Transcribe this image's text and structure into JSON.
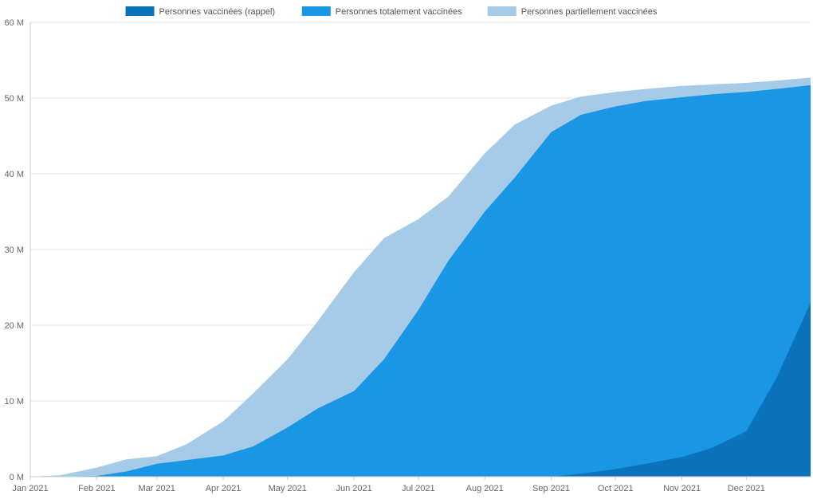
{
  "chart_data": {
    "type": "area",
    "stacked": true,
    "title": "",
    "xlabel": "",
    "ylabel": "",
    "ylim": [
      0,
      60
    ],
    "y_unit": "M",
    "y_ticks": [
      "0 M",
      "10 M",
      "20 M",
      "30 M",
      "40 M",
      "50 M",
      "60 M"
    ],
    "x_ticks": [
      "Jan 2021",
      "Feb 2021",
      "Mar 2021",
      "Apr 2021",
      "May 2021",
      "Jun 2021",
      "Jul 2021",
      "Aug 2021",
      "Sep 2021",
      "Oct 2021",
      "Nov 2021",
      "Dec 2021"
    ],
    "grid": true,
    "legend_position": "top-center",
    "x": [
      "2021-01-01",
      "2021-01-15",
      "2021-02-01",
      "2021-02-15",
      "2021-03-01",
      "2021-03-15",
      "2021-04-01",
      "2021-04-15",
      "2021-05-01",
      "2021-05-15",
      "2021-06-01",
      "2021-06-15",
      "2021-07-01",
      "2021-07-15",
      "2021-08-01",
      "2021-08-15",
      "2021-09-01",
      "2021-09-15",
      "2021-10-01",
      "2021-10-15",
      "2021-11-01",
      "2021-11-15",
      "2021-12-01",
      "2021-12-15",
      "2021-12-31"
    ],
    "series": [
      {
        "name": "Personnes vaccinées (rappel)",
        "color": "#0a73bb",
        "values": [
          0,
          0,
          0,
          0,
          0,
          0,
          0,
          0,
          0,
          0,
          0,
          0,
          0,
          0,
          0,
          0,
          0,
          0.4,
          1.0,
          1.7,
          2.6,
          3.8,
          6.0,
          13.0,
          23.0
        ]
      },
      {
        "name": "Personnes totalement vaccinées",
        "color": "#1996e4",
        "values": [
          0,
          0,
          0.1,
          0.7,
          1.7,
          2.2,
          2.8,
          4.0,
          6.5,
          9.0,
          11.3,
          15.5,
          22.0,
          28.5,
          35.0,
          39.5,
          45.5,
          47.8,
          48.9,
          49.6,
          50.1,
          50.5,
          50.8,
          51.2,
          51.7
        ]
      },
      {
        "name": "Personnes partiellement vaccinées",
        "color": "#a5cbe8",
        "values": [
          0,
          0.2,
          1.2,
          2.3,
          2.7,
          4.3,
          7.3,
          11.0,
          15.5,
          20.5,
          27.0,
          31.5,
          34.0,
          37.0,
          42.7,
          46.5,
          49.0,
          50.2,
          50.8,
          51.2,
          51.6,
          51.8,
          52.0,
          52.3,
          52.7
        ]
      }
    ]
  }
}
